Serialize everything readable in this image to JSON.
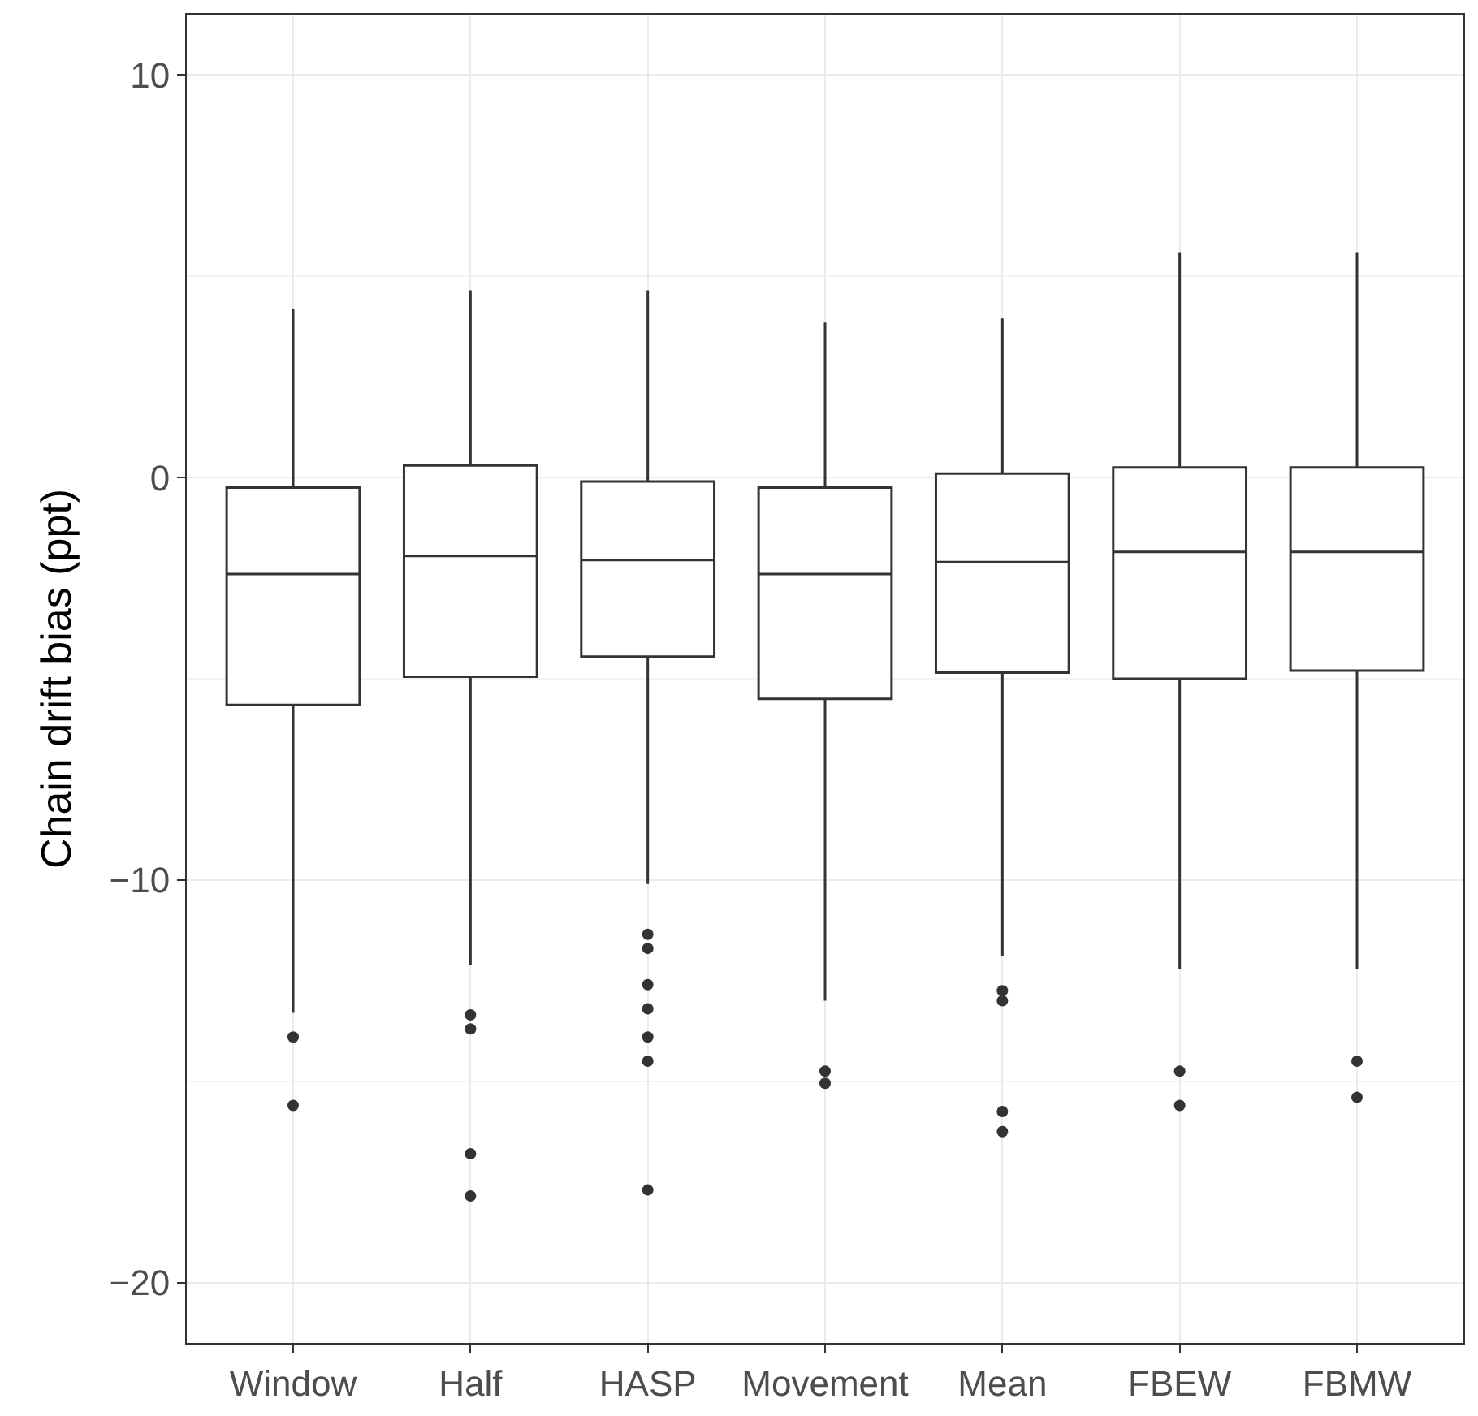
{
  "chart_data": {
    "type": "box",
    "ylabel": "Chain drift bias (ppt)",
    "categories": [
      "Window",
      "Half",
      "HASP",
      "Movement",
      "Mean",
      "FBEW",
      "FBMW"
    ],
    "boxes": [
      {
        "low": -13.3,
        "q1": -5.65,
        "median": -2.4,
        "q3": -0.25,
        "high": 4.2,
        "outliers": [
          -13.9,
          -15.6
        ]
      },
      {
        "low": -12.1,
        "q1": -4.95,
        "median": -1.95,
        "q3": 0.3,
        "high": 4.65,
        "outliers": [
          -13.35,
          -13.7,
          -16.8,
          -17.85
        ]
      },
      {
        "low": -10.1,
        "q1": -4.45,
        "median": -2.05,
        "q3": -0.1,
        "high": 4.65,
        "outliers": [
          -11.35,
          -11.7,
          -12.6,
          -13.2,
          -13.9,
          -14.5,
          -17.7
        ]
      },
      {
        "low": -13.0,
        "q1": -5.5,
        "median": -2.4,
        "q3": -0.25,
        "high": 3.85,
        "outliers": [
          -14.75,
          -15.05
        ]
      },
      {
        "low": -11.9,
        "q1": -4.85,
        "median": -2.1,
        "q3": 0.1,
        "high": 3.95,
        "outliers": [
          -12.75,
          -13.0,
          -15.75,
          -16.25
        ]
      },
      {
        "low": -12.2,
        "q1": -5.0,
        "median": -1.85,
        "q3": 0.25,
        "high": 5.6,
        "outliers": [
          -14.75,
          -15.6
        ]
      },
      {
        "low": -12.2,
        "q1": -4.8,
        "median": -1.85,
        "q3": 0.25,
        "high": 5.6,
        "outliers": [
          -14.5,
          -15.4
        ]
      }
    ],
    "color": "#333333",
    "ylim": [
      -21.5,
      11.5
    ],
    "yticks": [
      {
        "value": -20,
        "label": "−20"
      },
      {
        "value": -10,
        "label": "−10"
      },
      0,
      10
    ],
    "grid": true
  }
}
